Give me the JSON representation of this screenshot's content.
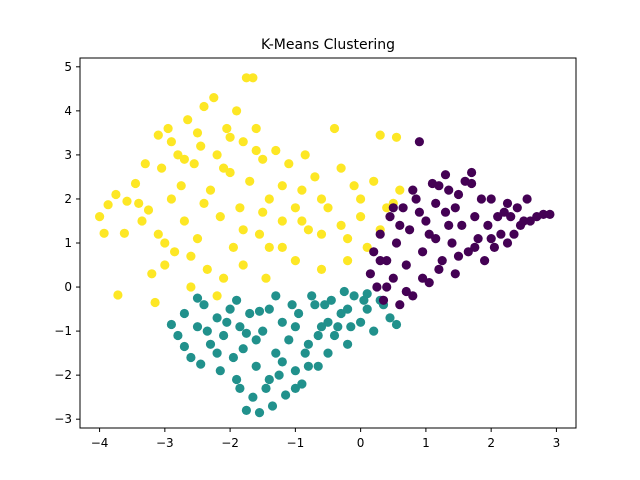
{
  "chart_data": {
    "type": "scatter",
    "title": "K-Means Clustering",
    "xlabel": "",
    "ylabel": "",
    "xlim": [
      -4.3,
      3.3
    ],
    "ylim": [
      -3.2,
      5.2
    ],
    "xticks": [
      -4,
      -3,
      -2,
      -1,
      0,
      1,
      2,
      3
    ],
    "yticks": [
      -3,
      -2,
      -1,
      0,
      1,
      2,
      3,
      4,
      5
    ],
    "grid": false,
    "legend": "none",
    "series": [
      {
        "color": "#fde725",
        "points": [
          [
            -4.0,
            1.6
          ],
          [
            -3.93,
            1.22
          ],
          [
            -3.87,
            1.87
          ],
          [
            -3.75,
            2.1
          ],
          [
            -3.72,
            -0.18
          ],
          [
            -3.62,
            1.22
          ],
          [
            -3.58,
            1.95
          ],
          [
            -3.45,
            2.35
          ],
          [
            -3.4,
            1.9
          ],
          [
            -3.35,
            1.5
          ],
          [
            -3.25,
            1.75
          ],
          [
            -3.2,
            0.3
          ],
          [
            -3.15,
            -0.35
          ],
          [
            -3.1,
            3.45
          ],
          [
            -3.1,
            1.2
          ],
          [
            -3.05,
            2.7
          ],
          [
            -3.0,
            0.5
          ],
          [
            -2.95,
            3.6
          ],
          [
            -2.9,
            2.0
          ],
          [
            -2.85,
            0.8
          ],
          [
            -2.8,
            3.0
          ],
          [
            -2.75,
            2.3
          ],
          [
            -2.7,
            1.5
          ],
          [
            -2.65,
            3.8
          ],
          [
            -2.6,
            0.0
          ],
          [
            -2.55,
            2.8
          ],
          [
            -2.5,
            1.1
          ],
          [
            -2.45,
            3.2
          ],
          [
            -2.4,
            4.1
          ],
          [
            -2.35,
            0.4
          ],
          [
            -2.3,
            2.2
          ],
          [
            -2.25,
            4.3
          ],
          [
            -2.2,
            3.0
          ],
          [
            -2.15,
            1.6
          ],
          [
            -2.1,
            0.2
          ],
          [
            -2.05,
            3.6
          ],
          [
            -2.0,
            2.6
          ],
          [
            -1.95,
            0.9
          ],
          [
            -1.9,
            4.0
          ],
          [
            -1.85,
            1.8
          ],
          [
            -1.8,
            3.3
          ],
          [
            -1.75,
            4.75
          ],
          [
            -1.7,
            2.4
          ],
          [
            -1.65,
            4.75
          ],
          [
            -1.6,
            3.6
          ],
          [
            -1.55,
            1.2
          ],
          [
            -1.5,
            2.9
          ],
          [
            -1.45,
            0.2
          ],
          [
            -1.4,
            2.0
          ],
          [
            -1.3,
            3.1
          ],
          [
            -1.2,
            1.5
          ],
          [
            -1.1,
            2.8
          ],
          [
            -1.0,
            0.6
          ],
          [
            -0.9,
            2.2
          ],
          [
            -0.85,
            3.0
          ],
          [
            -0.8,
            1.3
          ],
          [
            -0.7,
            2.5
          ],
          [
            -0.6,
            0.4
          ],
          [
            -0.5,
            1.8
          ],
          [
            -0.4,
            3.6
          ],
          [
            -0.3,
            2.7
          ],
          [
            -0.2,
            1.1
          ],
          [
            -0.1,
            2.3
          ],
          [
            0.0,
            1.6
          ],
          [
            0.1,
            0.9
          ],
          [
            0.2,
            2.4
          ],
          [
            0.3,
            3.45
          ],
          [
            0.4,
            1.8
          ],
          [
            0.55,
            3.4
          ],
          [
            0.6,
            2.2
          ],
          [
            -2.6,
            0.7
          ],
          [
            -2.2,
            -0.2
          ],
          [
            -1.8,
            0.5
          ],
          [
            -1.4,
            0.9
          ],
          [
            -1.0,
            1.8
          ],
          [
            -0.6,
            1.2
          ],
          [
            -0.2,
            0.6
          ],
          [
            -3.3,
            2.8
          ],
          [
            -3.0,
            1.0
          ],
          [
            -2.7,
            2.9
          ],
          [
            -2.4,
            1.9
          ],
          [
            -2.1,
            2.7
          ],
          [
            -1.8,
            1.3
          ],
          [
            -1.5,
            1.7
          ],
          [
            -1.2,
            0.9
          ],
          [
            -0.9,
            1.5
          ],
          [
            -0.6,
            2.0
          ],
          [
            -0.3,
            1.4
          ],
          [
            0.0,
            2.0
          ],
          [
            0.3,
            1.3
          ],
          [
            0.5,
            1.9
          ],
          [
            -2.9,
            3.3
          ],
          [
            -2.5,
            3.5
          ],
          [
            -2.0,
            3.4
          ],
          [
            -1.6,
            3.1
          ],
          [
            -1.2,
            2.3
          ]
        ]
      },
      {
        "color": "#21918c",
        "points": [
          [
            -2.9,
            -0.85
          ],
          [
            -2.8,
            -1.1
          ],
          [
            -2.7,
            -0.6
          ],
          [
            -2.6,
            -1.6
          ],
          [
            -2.5,
            -0.9
          ],
          [
            -2.45,
            -1.75
          ],
          [
            -2.4,
            -0.4
          ],
          [
            -2.3,
            -1.3
          ],
          [
            -2.2,
            -0.7
          ],
          [
            -2.15,
            -1.9
          ],
          [
            -2.1,
            -1.1
          ],
          [
            -2.0,
            -0.5
          ],
          [
            -1.95,
            -1.6
          ],
          [
            -1.9,
            -2.1
          ],
          [
            -1.85,
            -0.9
          ],
          [
            -1.8,
            -1.4
          ],
          [
            -1.75,
            -2.8
          ],
          [
            -1.7,
            -0.6
          ],
          [
            -1.65,
            -2.5
          ],
          [
            -1.6,
            -1.8
          ],
          [
            -1.55,
            -2.85
          ],
          [
            -1.5,
            -1.0
          ],
          [
            -1.45,
            -2.3
          ],
          [
            -1.4,
            -0.5
          ],
          [
            -1.35,
            -2.7
          ],
          [
            -1.3,
            -1.5
          ],
          [
            -1.25,
            -2.0
          ],
          [
            -1.2,
            -0.8
          ],
          [
            -1.15,
            -2.45
          ],
          [
            -1.1,
            -1.2
          ],
          [
            -1.0,
            -1.9
          ],
          [
            -0.95,
            -0.6
          ],
          [
            -0.9,
            -2.2
          ],
          [
            -0.8,
            -1.3
          ],
          [
            -0.7,
            -0.4
          ],
          [
            -0.65,
            -1.8
          ],
          [
            -0.6,
            -0.9
          ],
          [
            -0.5,
            -1.5
          ],
          [
            -0.45,
            -0.3
          ],
          [
            -0.4,
            -1.1
          ],
          [
            -0.3,
            -0.6
          ],
          [
            -0.2,
            -1.3
          ],
          [
            -0.1,
            -0.2
          ],
          [
            0.0,
            -0.8
          ],
          [
            0.1,
            -0.5
          ],
          [
            0.2,
            -1.0
          ],
          [
            0.3,
            -0.3
          ],
          [
            0.45,
            -0.7
          ],
          [
            0.55,
            -0.85
          ],
          [
            -2.5,
            -0.25
          ],
          [
            -2.2,
            -1.5
          ],
          [
            -1.9,
            -0.3
          ],
          [
            -1.6,
            -1.2
          ],
          [
            -1.3,
            -0.2
          ],
          [
            -1.0,
            -0.9
          ],
          [
            -0.8,
            -1.8
          ],
          [
            -0.5,
            -0.8
          ],
          [
            -0.2,
            -0.5
          ],
          [
            0.1,
            -0.15
          ],
          [
            -1.4,
            -2.1
          ],
          [
            -1.2,
            -1.7
          ],
          [
            -1.0,
            -2.3
          ],
          [
            -0.85,
            -1.5
          ],
          [
            -0.65,
            -1.1
          ],
          [
            -0.35,
            -0.9
          ],
          [
            -0.15,
            -0.9
          ],
          [
            -2.7,
            -1.35
          ],
          [
            -2.35,
            -1.0
          ],
          [
            -2.05,
            -0.8
          ],
          [
            -1.75,
            -1.05
          ],
          [
            -1.55,
            -0.55
          ],
          [
            -1.05,
            -0.4
          ],
          [
            -0.75,
            -0.2
          ],
          [
            -0.55,
            -0.4
          ],
          [
            -0.25,
            -0.1
          ],
          [
            0.05,
            -0.3
          ],
          [
            0.35,
            -0.4
          ],
          [
            -1.85,
            -2.3
          ]
        ]
      },
      {
        "color": "#440154",
        "points": [
          [
            0.15,
            0.3
          ],
          [
            0.2,
            0.8
          ],
          [
            0.25,
            0.0
          ],
          [
            0.3,
            1.2
          ],
          [
            0.35,
            -0.3
          ],
          [
            0.4,
            0.6
          ],
          [
            0.45,
            1.6
          ],
          [
            0.5,
            0.2
          ],
          [
            0.55,
            1.0
          ],
          [
            0.6,
            -0.4
          ],
          [
            0.65,
            1.8
          ],
          [
            0.7,
            0.5
          ],
          [
            0.75,
            1.3
          ],
          [
            0.8,
            -0.2
          ],
          [
            0.85,
            2.0
          ],
          [
            0.9,
            3.3
          ],
          [
            0.95,
            0.8
          ],
          [
            1.0,
            1.5
          ],
          [
            1.05,
            0.1
          ],
          [
            1.1,
            2.35
          ],
          [
            1.15,
            1.1
          ],
          [
            1.2,
            2.3
          ],
          [
            1.25,
            0.6
          ],
          [
            1.3,
            1.7
          ],
          [
            1.35,
            2.2
          ],
          [
            1.4,
            1.0
          ],
          [
            1.45,
            0.3
          ],
          [
            1.5,
            2.1
          ],
          [
            1.55,
            1.4
          ],
          [
            1.6,
            2.4
          ],
          [
            1.65,
            0.8
          ],
          [
            1.7,
            2.6
          ],
          [
            1.75,
            1.6
          ],
          [
            1.8,
            1.1
          ],
          [
            1.85,
            2.0
          ],
          [
            1.9,
            0.6
          ],
          [
            1.95,
            1.4
          ],
          [
            2.0,
            2.0
          ],
          [
            2.05,
            0.9
          ],
          [
            2.1,
            1.6
          ],
          [
            2.15,
            1.2
          ],
          [
            2.2,
            1.7
          ],
          [
            2.25,
            1.0
          ],
          [
            2.3,
            1.6
          ],
          [
            2.35,
            1.2
          ],
          [
            2.4,
            1.8
          ],
          [
            2.45,
            1.4
          ],
          [
            2.5,
            1.5
          ],
          [
            2.55,
            2.0
          ],
          [
            2.6,
            1.5
          ],
          [
            2.7,
            1.6
          ],
          [
            2.8,
            1.65
          ],
          [
            2.9,
            1.65
          ],
          [
            1.3,
            2.55
          ],
          [
            1.7,
            2.35
          ],
          [
            2.25,
            1.9
          ],
          [
            0.4,
            0.0
          ],
          [
            0.7,
            -0.1
          ],
          [
            0.95,
            0.2
          ],
          [
            1.2,
            0.4
          ],
          [
            1.5,
            0.7
          ],
          [
            1.75,
            0.9
          ],
          [
            2.0,
            1.1
          ],
          [
            0.3,
            0.6
          ],
          [
            0.6,
            1.4
          ],
          [
            0.9,
            1.7
          ],
          [
            1.15,
            1.9
          ],
          [
            1.45,
            1.8
          ],
          [
            1.05,
            1.2
          ],
          [
            1.35,
            1.4
          ],
          [
            0.5,
            1.8
          ],
          [
            0.8,
            2.2
          ]
        ]
      }
    ]
  }
}
